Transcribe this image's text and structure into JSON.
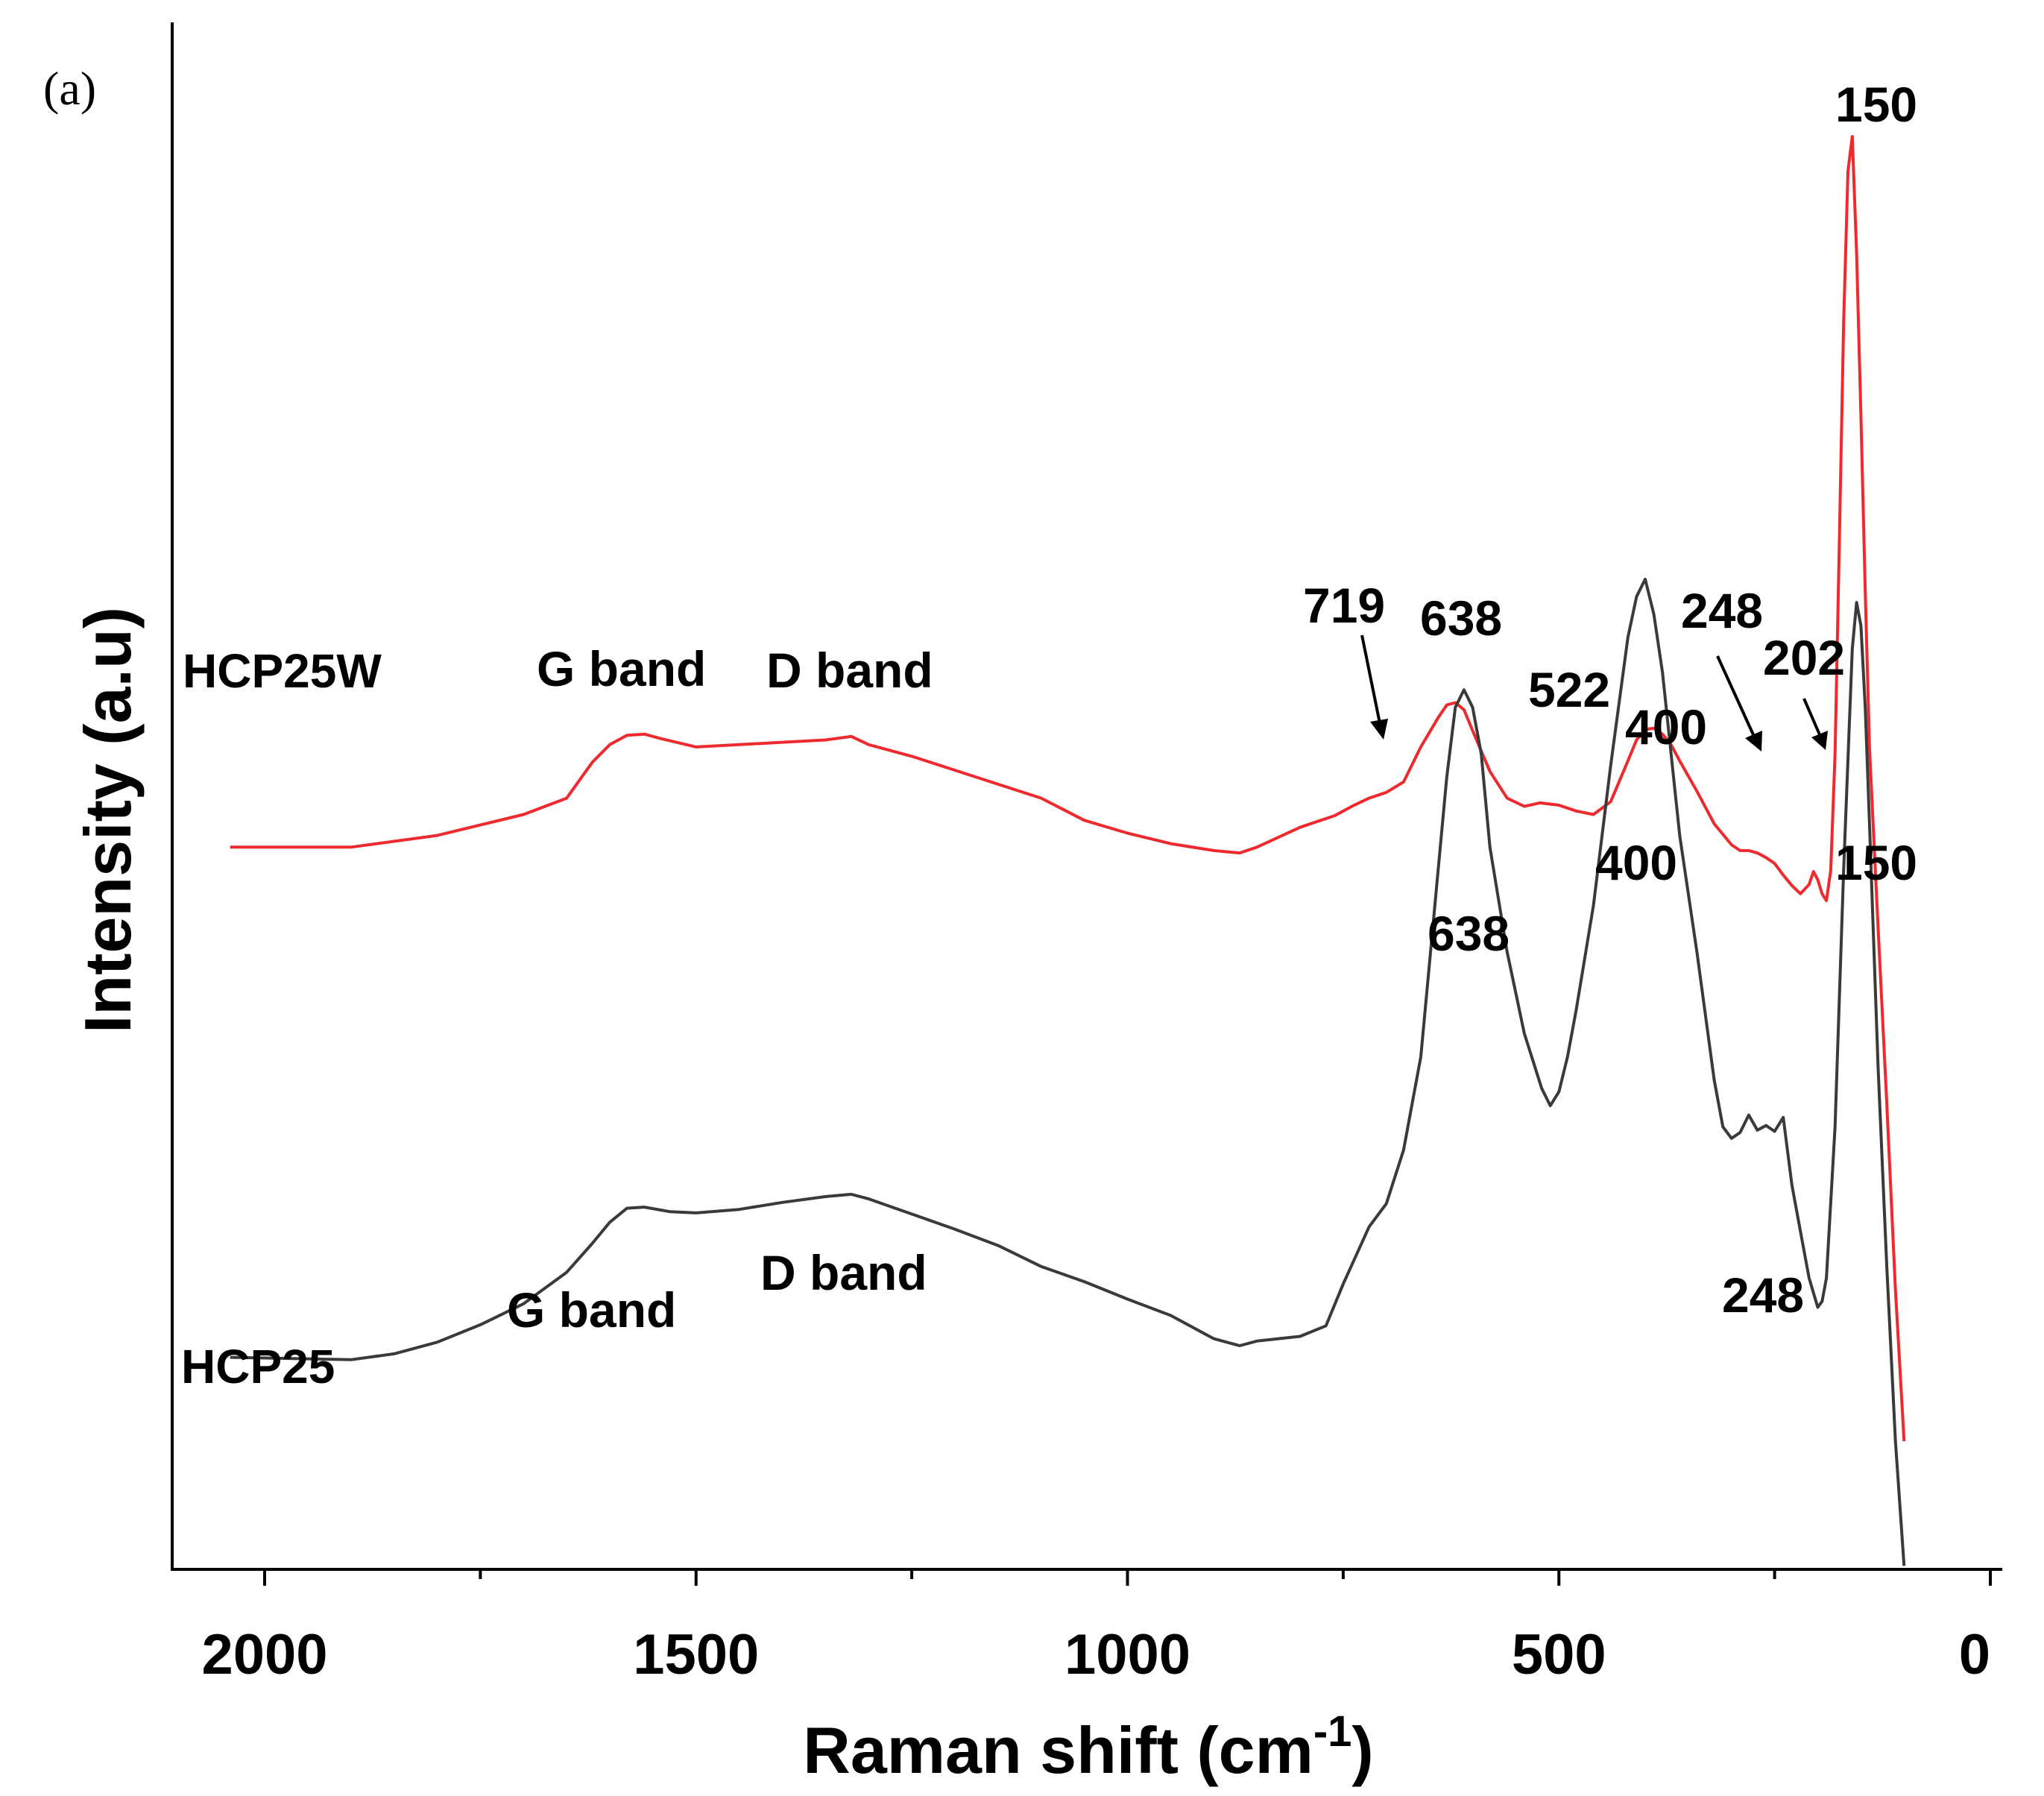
{
  "panel_label": "(a)",
  "chart_data": {
    "type": "line",
    "title": "",
    "xlabel": "Raman shift (cm",
    "xlabel_superscript": "-1",
    "xlabel_close": ")",
    "ylabel": "Intensity (a.u)",
    "xlim": [
      2100,
      0
    ],
    "xticks": [
      2000,
      1500,
      1000,
      500,
      0
    ],
    "xtick_labels": [
      "2000",
      "1500",
      "1000",
      "500",
      "0"
    ],
    "minor_xticks": [
      1750,
      1250,
      750,
      250
    ],
    "ylim": [
      0,
      1200
    ],
    "series": [
      {
        "name": "HCP25W",
        "color": "#ee2a2f",
        "x": [
          2040,
          1900,
          1800,
          1700,
          1650,
          1620,
          1600,
          1580,
          1560,
          1540,
          1500,
          1450,
          1400,
          1350,
          1320,
          1300,
          1250,
          1200,
          1150,
          1100,
          1050,
          1000,
          950,
          900,
          870,
          850,
          800,
          760,
          740,
          720,
          700,
          680,
          660,
          640,
          630,
          620,
          610,
          600,
          580,
          560,
          540,
          522,
          500,
          480,
          460,
          440,
          420,
          410,
          400,
          390,
          380,
          370,
          360,
          340,
          320,
          300,
          290,
          280,
          270,
          260,
          250,
          240,
          230,
          220,
          210,
          205,
          200,
          195,
          190,
          185,
          180,
          175,
          170,
          165,
          160,
          155,
          150,
          145,
          140,
          130,
          120,
          110,
          100
        ],
        "y": [
          620,
          620,
          630,
          648,
          662,
          693,
          708,
          716,
          717,
          713,
          706,
          708,
          710,
          712,
          715,
          708,
          698,
          686,
          674,
          662,
          643,
          632,
          623,
          617,
          615,
          620,
          637,
          647,
          655,
          662,
          667,
          676,
          706,
          731,
          742,
          744,
          738,
          720,
          685,
          662,
          655,
          658,
          656,
          651,
          648,
          659,
          694,
          712,
          721,
          722,
          717,
          708,
          694,
          668,
          640,
          622,
          617,
          617,
          615,
          611,
          606,
          596,
          587,
          580,
          588,
          599,
          592,
          580,
          574,
          600,
          700,
          880,
          1070,
          1200,
          1230,
          1130,
          990,
          840,
          705,
          550,
          400,
          240,
          110
        ],
        "annotations": [
          {
            "label": "150",
            "x": 150
          },
          {
            "label": "202",
            "x": 202
          },
          {
            "label": "248",
            "x": 248
          },
          {
            "label": "400",
            "x": 400
          },
          {
            "label": "522",
            "x": 522
          },
          {
            "label": "638",
            "x": 638
          },
          {
            "label": "719",
            "x": 719
          },
          {
            "label": "G band",
            "x": 1580
          },
          {
            "label": "D band",
            "x": 1330
          }
        ]
      },
      {
        "name": "HCP25",
        "color": "#3a3a3a",
        "x": [
          2040,
          1900,
          1850,
          1800,
          1750,
          1700,
          1650,
          1620,
          1600,
          1580,
          1560,
          1530,
          1500,
          1450,
          1400,
          1350,
          1320,
          1300,
          1250,
          1200,
          1150,
          1100,
          1050,
          1000,
          950,
          900,
          870,
          850,
          800,
          770,
          750,
          720,
          700,
          680,
          660,
          650,
          640,
          630,
          620,
          610,
          600,
          590,
          580,
          560,
          540,
          520,
          510,
          500,
          490,
          480,
          460,
          440,
          420,
          410,
          400,
          390,
          380,
          360,
          340,
          320,
          310,
          300,
          290,
          280,
          270,
          260,
          250,
          240,
          230,
          220,
          210,
          200,
          195,
          190,
          180,
          170,
          160,
          155,
          150,
          145,
          140,
          130,
          120,
          110,
          100
        ],
        "y": [
          182,
          180,
          185,
          195,
          210,
          228,
          255,
          280,
          298,
          310,
          311,
          307,
          306,
          309,
          315,
          320,
          322,
          318,
          305,
          292,
          278,
          260,
          247,
          232,
          218,
          198,
          192,
          196,
          200,
          209,
          245,
          294,
          314,
          360,
          440,
          520,
          600,
          680,
          740,
          755,
          740,
          700,
          620,
          530,
          460,
          413,
          398,
          410,
          440,
          480,
          570,
          690,
          800,
          835,
          850,
          820,
          770,
          630,
          530,
          420,
          380,
          370,
          375,
          390,
          377,
          381,
          376,
          388,
          330,
          290,
          250,
          225,
          230,
          250,
          380,
          600,
          790,
          830,
          810,
          740,
          640,
          430,
          260,
          110,
          3
        ]
      }
    ]
  },
  "labels": {
    "hcp25w_name": "HCP25W",
    "hcp25_name": "HCP25",
    "w_g_band": "G band",
    "w_d_band": "D band",
    "w_719": "719",
    "w_638": "638",
    "w_522": "522",
    "w_400": "400",
    "w_248": "248",
    "w_202": "202",
    "w_150": "150",
    "p_g_band": "G band",
    "p_d_band": "D band",
    "p_638": "638",
    "p_400": "400",
    "p_248": "248",
    "p_150": "150"
  }
}
